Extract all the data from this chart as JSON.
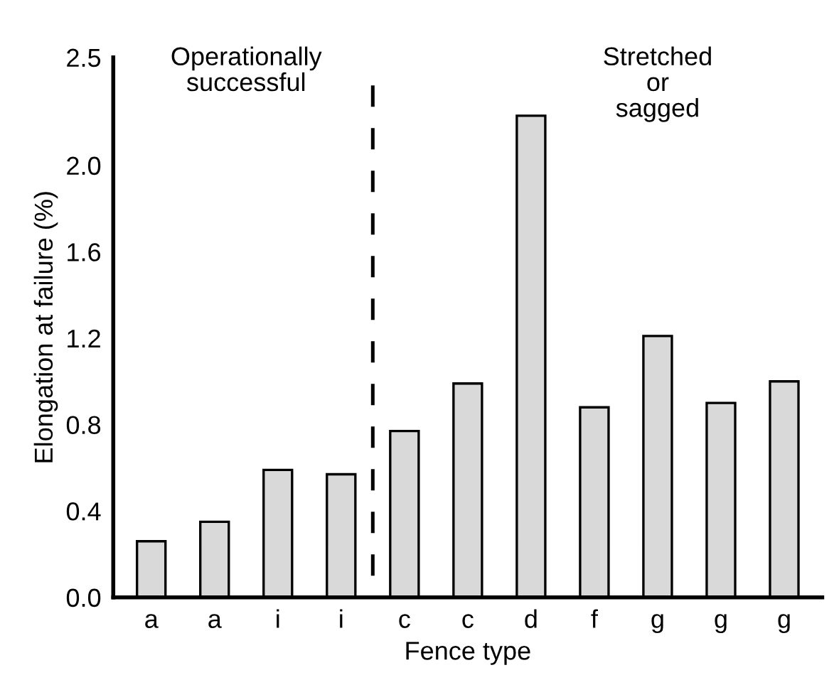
{
  "chart_data": {
    "type": "bar",
    "xlabel": "Fence type",
    "ylabel": "Elongation at failure (%)",
    "categories": [
      "a",
      "a",
      "i",
      "i",
      "c",
      "c",
      "d",
      "f",
      "g",
      "g",
      "g"
    ],
    "values": [
      0.26,
      0.35,
      0.59,
      0.57,
      0.77,
      0.99,
      2.23,
      0.88,
      1.21,
      0.9,
      1.0
    ],
    "color": "#d9d9d9",
    "ylim": [
      0,
      2.5
    ],
    "yticks": [
      {
        "value": 0,
        "label": "0.0"
      },
      0.4,
      0.8,
      1.2,
      1.6,
      {
        "value": 2,
        "label": "2.0"
      },
      2.5
    ],
    "grid": false,
    "annotations": [
      "Operationally\nsuccessful",
      "Stretched\nor\nsagged"
    ]
  }
}
